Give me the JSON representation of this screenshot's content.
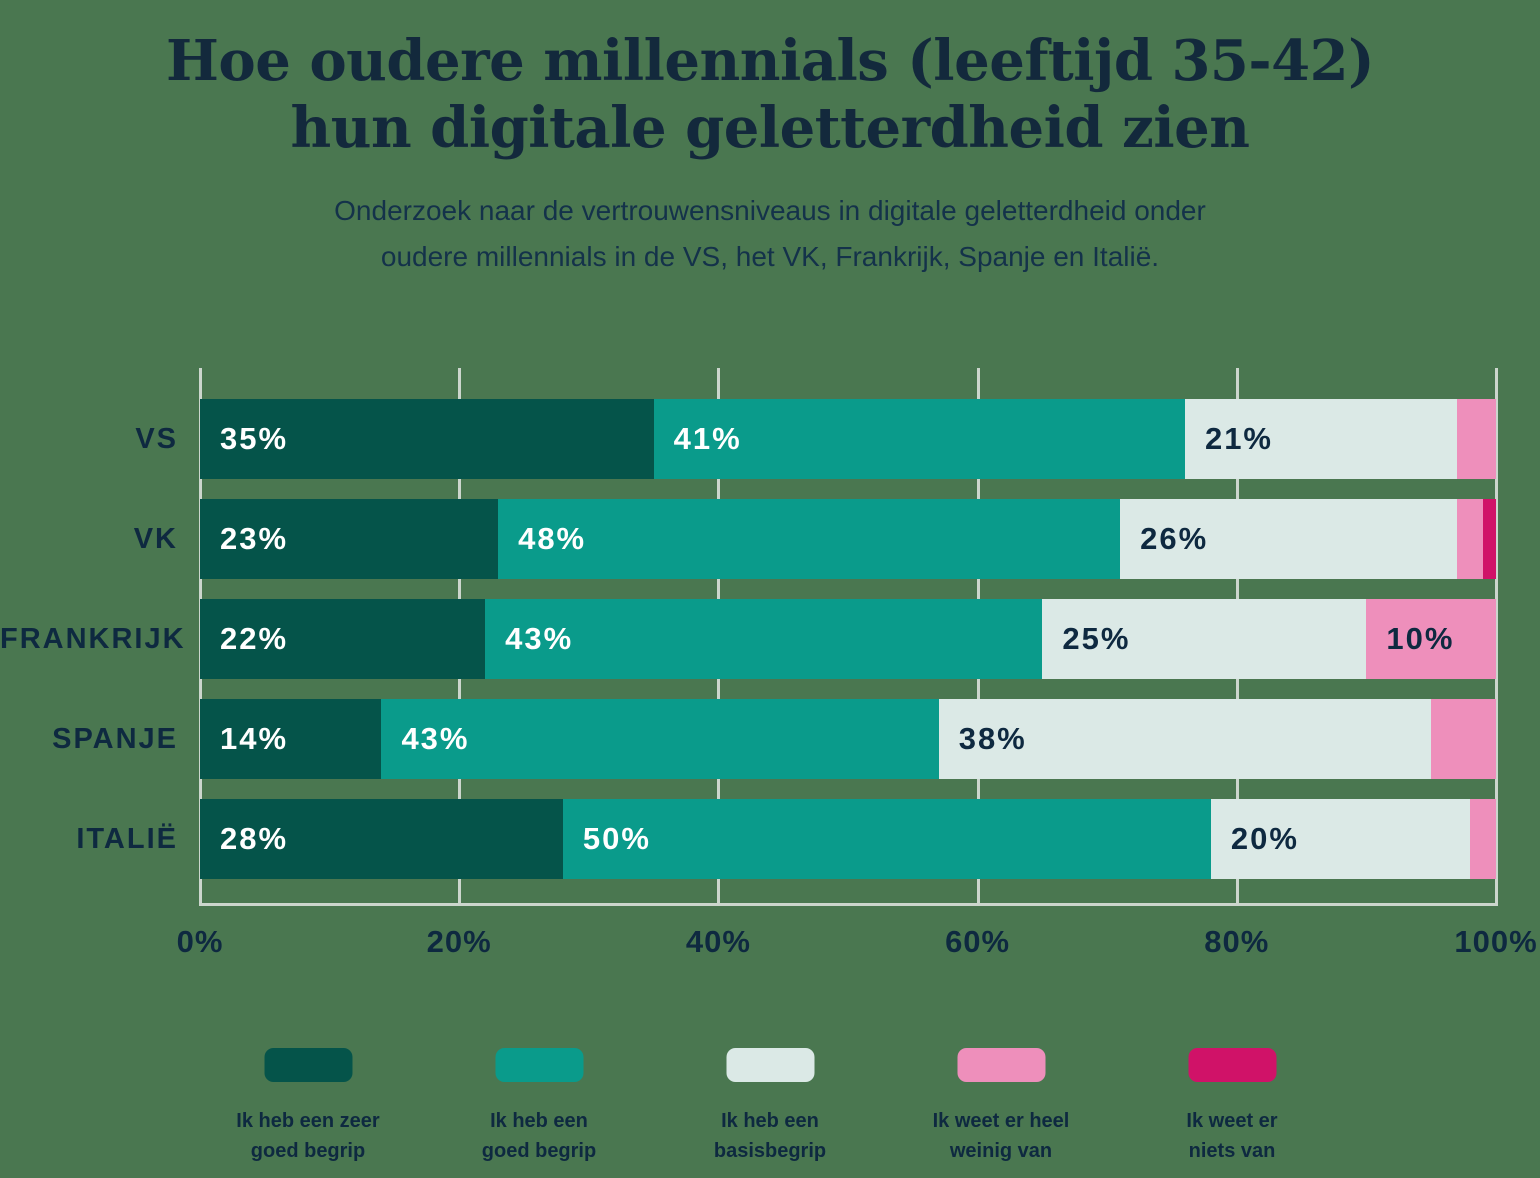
{
  "page": {
    "background": "#4a7750"
  },
  "header": {
    "title": "Hoe oudere millennials (leeftijd 35-42)\nhun digitale geletterdheid zien",
    "subtitle": "Onderzoek naar de vertrouwensniveaus in digitale geletterdheid onder\noudere millennials in de VS, het VK, Frankrijk, Spanje en Italië."
  },
  "chart_data": {
    "type": "bar",
    "orientation": "horizontal",
    "stacked": true,
    "title": "Hoe oudere millennials (leeftijd 35-42) hun digitale geletterdheid zien",
    "subtitle": "Onderzoek naar de vertrouwensniveaus in digitale geletterdheid onder oudere millennials in de VS, het VK, Frankrijk, Spanje en Italië.",
    "categories": [
      "VS",
      "VK",
      "FRANKRIJK",
      "SPANJE",
      "ITALIË"
    ],
    "series": [
      {
        "name": "Ik heb een zeer goed begrip",
        "color": "#05544a",
        "label_color": "#ffffff",
        "values": [
          35,
          23,
          22,
          14,
          28
        ]
      },
      {
        "name": "Ik heb een goed begrip",
        "color": "#0a9b8b",
        "label_color": "#ffffff",
        "values": [
          41,
          48,
          43,
          43,
          50
        ]
      },
      {
        "name": "Ik heb een basisbegrip",
        "color": "#dbe9e6",
        "label_color": "#0e2940",
        "values": [
          21,
          26,
          25,
          38,
          20
        ]
      },
      {
        "name": "Ik weet er heel weinig van",
        "color": "#ee8fbb",
        "label_color": "#0e2940",
        "values": [
          3,
          2,
          10,
          5,
          2
        ]
      },
      {
        "name": "Ik weet er niets van",
        "color": "#d01268",
        "label_color": "#ffffff",
        "values": [
          0,
          1,
          0,
          0,
          0
        ]
      }
    ],
    "x_ticks": [
      "0%",
      "20%",
      "40%",
      "60%",
      "80%",
      "100%"
    ],
    "xlim": [
      0,
      100
    ],
    "gridlines": true,
    "value_label_min": 10,
    "value_label_suffix": "%",
    "legend_position": "bottom"
  },
  "legend": {
    "items": [
      {
        "label": "Ik heb een zeer\ngoed begrip",
        "color": "#05544a"
      },
      {
        "label": "Ik heb een\ngoed begrip",
        "color": "#0a9b8b"
      },
      {
        "label": "Ik heb een\nbasisbegrip",
        "color": "#dbe9e6"
      },
      {
        "label": "Ik weet er heel\nweinig van",
        "color": "#ee8fbb"
      },
      {
        "label": "Ik weet er\nniets van",
        "color": "#d01268"
      }
    ]
  }
}
